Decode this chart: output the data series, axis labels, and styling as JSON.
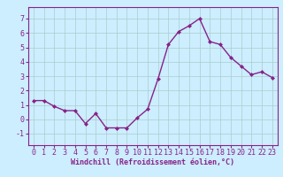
{
  "x": [
    0,
    1,
    2,
    3,
    4,
    5,
    6,
    7,
    8,
    9,
    10,
    11,
    12,
    13,
    14,
    15,
    16,
    17,
    18,
    19,
    20,
    21,
    22,
    23
  ],
  "y": [
    1.3,
    1.3,
    0.9,
    0.6,
    0.6,
    -0.3,
    0.4,
    -0.6,
    -0.6,
    -0.6,
    0.1,
    0.7,
    2.8,
    5.2,
    6.1,
    6.5,
    7.0,
    5.4,
    5.2,
    4.3,
    3.7,
    3.1,
    3.3,
    2.9
  ],
  "line_color": "#882288",
  "marker": "D",
  "marker_size": 2.0,
  "bg_color": "#cceeff",
  "grid_color": "#aacccc",
  "xlabel": "Windchill (Refroidissement éolien,°C)",
  "xlabel_fontsize": 6.0,
  "ylabel_ticks": [
    -1,
    0,
    1,
    2,
    3,
    4,
    5,
    6,
    7
  ],
  "xlim": [
    -0.5,
    23.5
  ],
  "ylim": [
    -1.8,
    7.8
  ],
  "tick_fontsize": 6.0,
  "line_width": 1.0
}
